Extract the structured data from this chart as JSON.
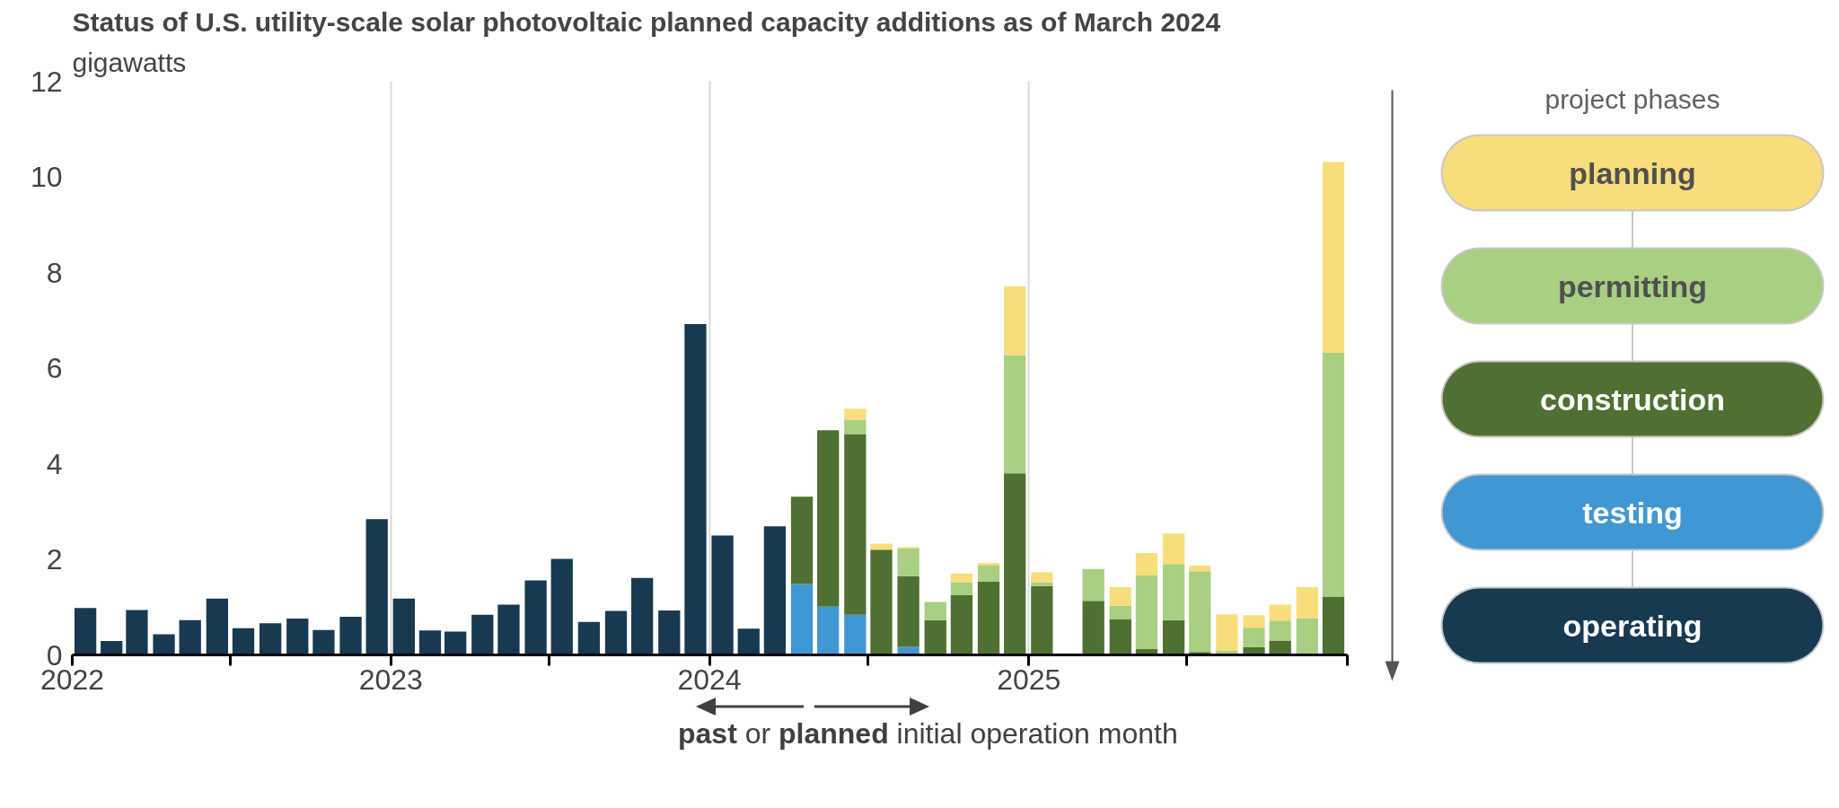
{
  "chart_data": {
    "type": "bar",
    "stacked": true,
    "title": "Status of U.S. utility-scale solar photovoltaic planned capacity additions as of March 2024",
    "subtitle": "gigawatts",
    "legend_title": "project phases",
    "legend": "right",
    "grid": "x",
    "annotations": [
      "past or planned initial operation month"
    ],
    "x": [
      "2022-01-16",
      "2022-02-15",
      "2022-03-16",
      "2022-04-16",
      "2022-05-16",
      "2022-06-16",
      "2022-07-16",
      "2022-08-16",
      "2022-09-16",
      "2022-10-16",
      "2022-11-16",
      "2022-12-16",
      "2023-01-16",
      "2023-02-15",
      "2023-03-16",
      "2023-04-16",
      "2023-05-16",
      "2023-06-16",
      "2023-07-16",
      "2023-08-16",
      "2023-09-16",
      "2023-10-16",
      "2023-11-16",
      "2023-12-16",
      "2024-01-16",
      "2024-02-15",
      "2024-03-16",
      "2024-04-16",
      "2024-05-16",
      "2024-06-16",
      "2024-07-16",
      "2024-08-16",
      "2024-09-16",
      "2024-10-16",
      "2024-11-16",
      "2024-12-16",
      "2025-01-16",
      "2025-02-15",
      "2025-03-16",
      "2025-04-16",
      "2025-05-16",
      "2025-06-16",
      "2025-07-16",
      "2025-08-16",
      "2025-09-16",
      "2025-10-16",
      "2025-11-16",
      "2025-12-16"
    ],
    "series": [
      {
        "name": "operating",
        "color": "#173a52",
        "values": [
          0.98,
          0.29,
          0.94,
          0.43,
          0.73,
          1.18,
          0.56,
          0.66,
          0.76,
          0.52,
          0.8,
          2.84,
          1.18,
          0.51,
          0.49,
          0.84,
          1.05,
          1.56,
          2.01,
          0.69,
          0.92,
          1.61,
          0.93,
          6.92,
          2.5,
          0.55,
          2.69,
          null,
          null,
          null,
          null,
          null,
          null,
          null,
          null,
          null,
          null,
          null,
          null,
          null,
          null,
          null,
          null,
          null,
          null,
          null,
          null,
          null
        ]
      },
      {
        "name": "testing",
        "color": "#4197d2",
        "values": [
          null,
          null,
          null,
          null,
          null,
          null,
          null,
          null,
          null,
          null,
          null,
          null,
          null,
          null,
          null,
          null,
          null,
          null,
          null,
          null,
          null,
          null,
          null,
          null,
          null,
          null,
          null,
          1.49,
          1.01,
          0.84,
          null,
          0.17,
          null,
          null,
          null,
          null,
          null,
          null,
          null,
          null,
          null,
          null,
          null,
          null,
          null,
          null,
          null,
          null
        ]
      },
      {
        "name": "construction",
        "color": "#507032",
        "values": [
          null,
          null,
          null,
          null,
          null,
          null,
          null,
          null,
          null,
          null,
          null,
          null,
          null,
          null,
          null,
          null,
          null,
          null,
          null,
          null,
          null,
          null,
          null,
          null,
          null,
          null,
          null,
          1.82,
          3.69,
          3.78,
          2.2,
          1.48,
          0.73,
          1.25,
          1.53,
          3.8,
          1.44,
          null,
          1.13,
          0.75,
          0.12,
          0.73,
          0.06,
          null,
          0.16,
          0.3,
          null,
          1.22
        ]
      },
      {
        "name": "permitting",
        "color": "#a8cf82",
        "values": [
          null,
          null,
          null,
          null,
          null,
          null,
          null,
          null,
          null,
          null,
          null,
          null,
          null,
          null,
          null,
          null,
          null,
          null,
          null,
          null,
          null,
          null,
          null,
          null,
          null,
          null,
          null,
          null,
          null,
          0.3,
          null,
          0.58,
          0.38,
          0.27,
          0.34,
          2.47,
          0.08,
          null,
          0.67,
          0.28,
          1.54,
          1.17,
          1.69,
          0.09,
          0.41,
          0.42,
          0.77,
          5.1
        ]
      },
      {
        "name": "planning",
        "color": "#f8dd7a",
        "values": [
          null,
          null,
          null,
          null,
          null,
          null,
          null,
          null,
          null,
          null,
          null,
          null,
          null,
          null,
          null,
          null,
          null,
          null,
          null,
          null,
          null,
          null,
          null,
          null,
          null,
          null,
          null,
          null,
          null,
          0.23,
          0.13,
          0.03,
          null,
          0.18,
          0.05,
          1.44,
          0.21,
          null,
          null,
          0.39,
          0.47,
          0.64,
          0.12,
          0.76,
          0.26,
          0.33,
          0.65,
          3.99
        ]
      }
    ],
    "xlim": [
      "2022-01",
      "2026-01"
    ],
    "xticks": [
      {
        "value": "2022-01",
        "label": "2022"
      },
      {
        "value": "2022-07",
        "label": null
      },
      {
        "value": "2023-01",
        "label": "2023"
      },
      {
        "value": "2023-07",
        "label": null
      },
      {
        "value": "2024-01",
        "label": "2024"
      },
      {
        "value": "2024-07",
        "label": null
      },
      {
        "value": "2025-01",
        "label": "2025"
      },
      {
        "value": "2025-07",
        "label": null
      },
      {
        "value": "2026-01",
        "label": null
      }
    ],
    "ylim": [
      0,
      12
    ],
    "yticks": [
      0,
      2,
      4,
      6,
      8,
      10,
      12
    ]
  }
}
